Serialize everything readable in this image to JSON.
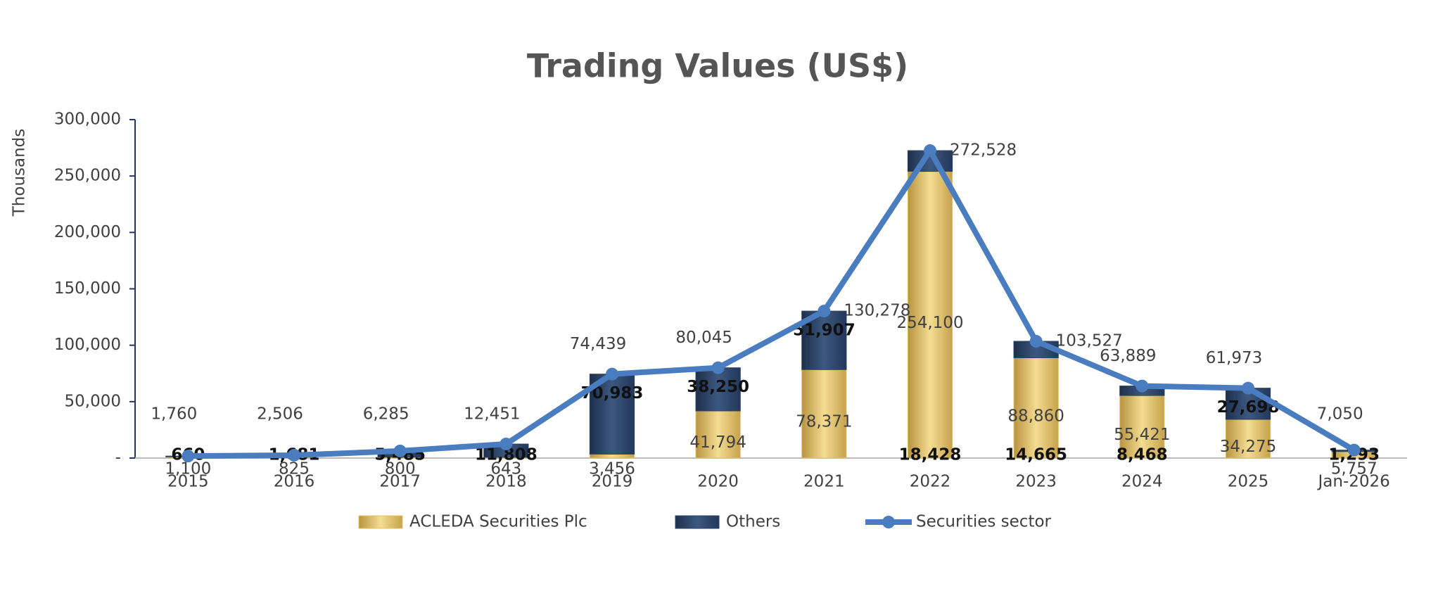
{
  "chart_data": {
    "type": "bar-line",
    "title": "Trading Values (US$)",
    "y_label": "Thousands",
    "categories": [
      "2015",
      "2016",
      "2017",
      "2018",
      "2019",
      "2020",
      "2021",
      "2022",
      "2023",
      "2024",
      "2025",
      "Jan-2026"
    ],
    "series": [
      {
        "name": "ACLEDA Securities Plc",
        "type": "bar",
        "color": "#e3c36a",
        "values": [
          1100,
          825,
          800,
          643,
          3456,
          41794,
          78371,
          254100,
          88860,
          55421,
          34275,
          5757
        ],
        "value_labels": [
          "1,100",
          "825",
          "800",
          "643",
          "3,456",
          "41,794",
          "78,371",
          "254,100",
          "88,860",
          "55,421",
          "34,275",
          "5,757"
        ]
      },
      {
        "name": "Others",
        "type": "bar",
        "color": "#2e4467",
        "values": [
          660,
          1681,
          5485,
          11808,
          70983,
          38250,
          51907,
          18428,
          14665,
          8468,
          27698,
          1293
        ],
        "value_labels": [
          "660",
          "1,681",
          "5,485",
          "11,808",
          "70,983",
          "38,250",
          "51,907",
          "18,428",
          "14,665",
          "8,468",
          "27,698",
          "1,293"
        ]
      },
      {
        "name": "Securities sector",
        "type": "line",
        "color": "#4a7cc0",
        "values": [
          1760,
          2506,
          6285,
          12451,
          74439,
          80045,
          130278,
          272528,
          103527,
          63889,
          61973,
          7050
        ],
        "value_labels": [
          "1,760",
          "2,506",
          "6,285",
          "12,451",
          "74,439",
          "80,045",
          "130,278",
          "272,528",
          "103,527",
          "63,889",
          "61,973",
          "7,050"
        ]
      }
    ],
    "ylim": [
      0,
      300000
    ],
    "yticks": [
      {
        "value": 0,
        "label": "-"
      },
      {
        "value": 50000,
        "label": "50,000"
      },
      {
        "value": 100000,
        "label": "100,000"
      },
      {
        "value": 150000,
        "label": "150,000"
      },
      {
        "value": 200000,
        "label": "200,000"
      },
      {
        "value": 250000,
        "label": "250,000"
      },
      {
        "value": 300000,
        "label": "300,000"
      }
    ]
  }
}
